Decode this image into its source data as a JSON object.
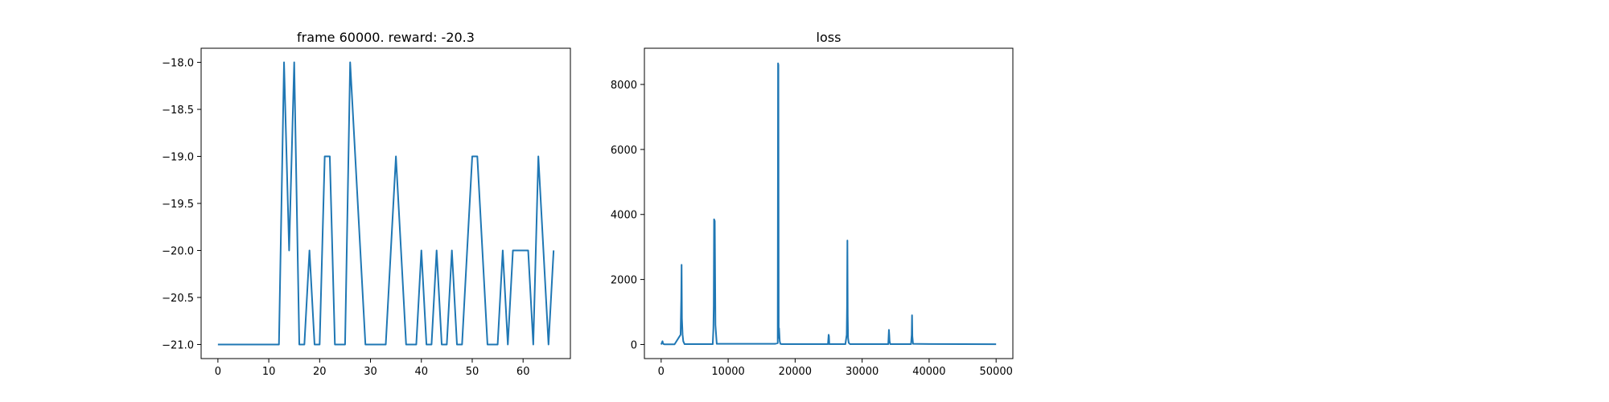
{
  "chart_data": [
    {
      "type": "line",
      "title": "frame 60000. reward: -20.3",
      "xlabel": "",
      "ylabel": "",
      "xlim": [
        -3.3,
        69.3
      ],
      "ylim": [
        -21.15,
        -17.85
      ],
      "xticks": [
        0,
        10,
        20,
        30,
        40,
        50,
        60
      ],
      "xtick_labels": [
        "0",
        "10",
        "20",
        "30",
        "40",
        "50",
        "60"
      ],
      "yticks": [
        -21.0,
        -20.5,
        -20.0,
        -19.5,
        -19.0,
        -18.5,
        -18.0
      ],
      "ytick_labels": [
        "−21.0",
        "−20.5",
        "−20.0",
        "−19.5",
        "−19.0",
        "−18.5",
        "−18.0"
      ],
      "grid": false,
      "series": [
        {
          "color": "#1f77b4",
          "x": [
            0,
            1,
            2,
            3,
            4,
            5,
            6,
            7,
            8,
            9,
            10,
            11,
            12,
            13,
            14,
            15,
            16,
            17,
            18,
            19,
            20,
            21,
            22,
            23,
            24,
            25,
            26,
            27,
            28,
            29,
            30,
            31,
            32,
            33,
            34,
            35,
            36,
            37,
            38,
            39,
            40,
            41,
            42,
            43,
            44,
            45,
            46,
            47,
            48,
            49,
            50,
            51,
            52,
            53,
            54,
            55,
            56,
            57,
            58,
            59,
            60,
            61,
            62,
            63,
            64,
            65,
            66
          ],
          "y": [
            -21,
            -21,
            -21,
            -21,
            -21,
            -21,
            -21,
            -21,
            -21,
            -21,
            -21,
            -21,
            -21,
            -18,
            -20,
            -18,
            -21,
            -21,
            -20,
            -21,
            -21,
            -19,
            -19,
            -21,
            -21,
            -21,
            -18,
            -19,
            -20,
            -21,
            -21,
            -21,
            -21,
            -21,
            -20,
            -19,
            -20,
            -21,
            -21,
            -21,
            -20,
            -21,
            -21,
            -20,
            -21,
            -21,
            -20,
            -21,
            -21,
            -20,
            -19,
            -19,
            -20,
            -21,
            -21,
            -21,
            -20,
            -21,
            -20,
            -20,
            -20,
            -20,
            -21,
            -19,
            -20,
            -21,
            -20
          ]
        }
      ]
    },
    {
      "type": "line",
      "title": "loss",
      "xlabel": "",
      "ylabel": "",
      "xlim": [
        -2500,
        52500
      ],
      "ylim": [
        -434,
        9114
      ],
      "xticks": [
        0,
        10000,
        20000,
        30000,
        40000,
        50000
      ],
      "xtick_labels": [
        "0",
        "10000",
        "20000",
        "30000",
        "40000",
        "50000"
      ],
      "yticks": [
        0,
        2000,
        4000,
        6000,
        8000
      ],
      "ytick_labels": [
        "0",
        "2000",
        "4000",
        "6000",
        "8000"
      ],
      "grid": false,
      "series": [
        {
          "color": "#1f77b4",
          "x": [
            0,
            200,
            300,
            500,
            2000,
            2900,
            3000,
            3050,
            3100,
            3200,
            3300,
            3500,
            7700,
            7800,
            7850,
            7900,
            8000,
            8100,
            8300,
            15000,
            17000,
            17400,
            17450,
            17500,
            17550,
            17600,
            17700,
            17800,
            18000,
            24900,
            25000,
            25050,
            25100,
            27500,
            27700,
            27750,
            27800,
            27850,
            27900,
            28000,
            28200,
            33900,
            34000,
            34050,
            34100,
            34200,
            37300,
            37400,
            37450,
            37500,
            37600,
            40000,
            45000,
            50000
          ],
          "y": [
            0,
            100,
            20,
            5,
            5,
            300,
            1400,
            2450,
            800,
            300,
            100,
            10,
            10,
            500,
            1200,
            3850,
            3800,
            600,
            20,
            20,
            20,
            40,
            8650,
            8600,
            200,
            500,
            100,
            20,
            10,
            10,
            300,
            250,
            10,
            10,
            300,
            1200,
            3200,
            900,
            200,
            50,
            10,
            10,
            450,
            300,
            100,
            10,
            10,
            300,
            900,
            250,
            20,
            15,
            10,
            8
          ]
        }
      ]
    }
  ]
}
